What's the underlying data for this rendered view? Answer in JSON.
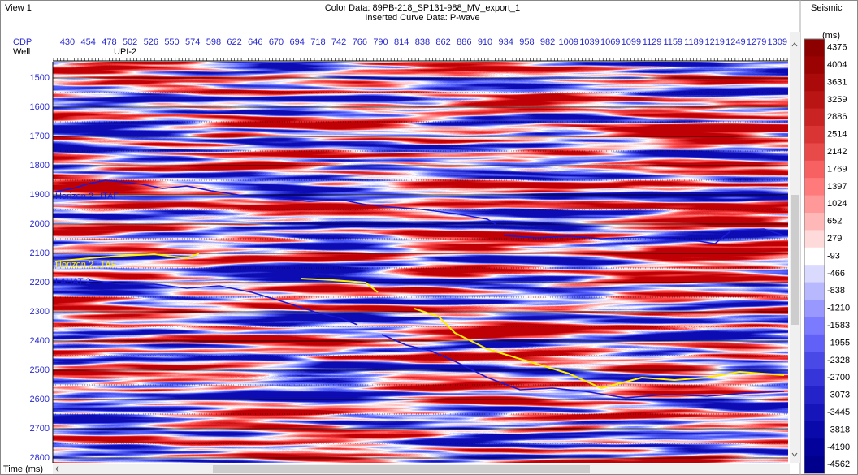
{
  "view_title": "View 1",
  "header": {
    "color_data": "Color Data: 89PB-218_SP131-988_MV_export_1",
    "curve_data": "Inserted Curve Data: P-wave"
  },
  "cdp_axis": {
    "title": "CDP",
    "labels": [
      "430",
      "454",
      "478",
      "502",
      "526",
      "550",
      "574",
      "598",
      "622",
      "646",
      "670",
      "694",
      "718",
      "742",
      "766",
      "790",
      "814",
      "838",
      "862",
      "886",
      "910",
      "934",
      "958",
      "982",
      "1009",
      "1039",
      "1069",
      "1099",
      "1129",
      "1159",
      "1189",
      "1219",
      "1249",
      "1279",
      "1309"
    ]
  },
  "well_row": {
    "title": "Well",
    "well": "UPI-2"
  },
  "time_axis": {
    "title": "Time (ms)",
    "labels": [
      "1500",
      "1600",
      "1700",
      "1800",
      "1900",
      "2000",
      "2100",
      "2200",
      "2300",
      "2400",
      "2500",
      "2600",
      "2700",
      "2800"
    ]
  },
  "horizons": [
    {
      "label": "Horizon 2 UTAF"
    },
    {
      "label": "Horizon 2 LTAF"
    },
    {
      "label": "LAHAT 2"
    }
  ],
  "colorbar": {
    "title": "Seismic",
    "unit": "(ms)",
    "labels": [
      "4376",
      "4004",
      "3631",
      "3259",
      "2886",
      "2514",
      "2142",
      "1769",
      "1397",
      "1024",
      "652",
      "279",
      "-93",
      "-466",
      "-838",
      "-1210",
      "-1583",
      "-1955",
      "-2328",
      "-2700",
      "-3073",
      "-3445",
      "-3818",
      "-4190",
      "-4562"
    ]
  }
}
